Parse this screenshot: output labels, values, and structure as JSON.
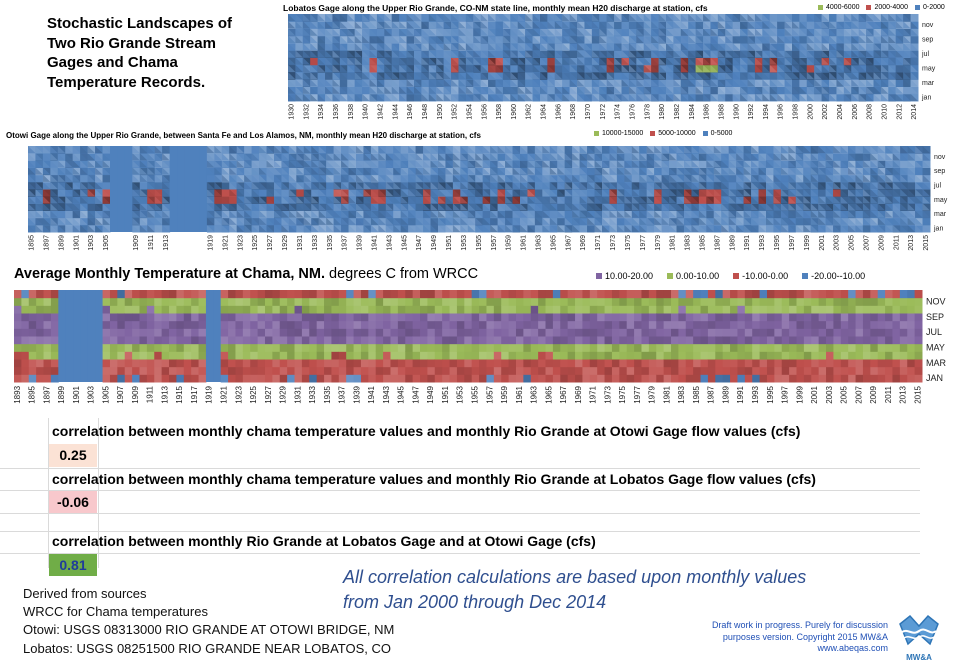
{
  "header": {
    "title_lines": [
      "Stochastic Landscapes of",
      "Two Rio Grande Stream",
      "Gages and Chama",
      "Temperature Records."
    ]
  },
  "colors": {
    "high": "#9bbb59",
    "mid": "#c0504d",
    "low": "#4f81bd",
    "temp_purple": "#8064a2",
    "temp_green": "#9bbb59",
    "temp_red": "#c0504d",
    "temp_blue": "#4f81bd",
    "value_otowi_bg": "#fbe2d5",
    "value_lobatos_bg": "#f8c8cc",
    "value_gages_bg": "#70ad47",
    "note": "#2f4f8f",
    "draft": "#1f4fb5"
  },
  "chart_data": [
    {
      "type": "heatmap",
      "title": "Lobatos Gage along the Upper Rio Grande, CO-NM state line, monthly mean H20 discharge at  station, cfs",
      "legend": [
        "4000-6000",
        "2000-4000",
        "0-2000"
      ],
      "legend_colors": [
        "#9bbb59",
        "#c0504d",
        "#4f81bd"
      ],
      "x_ticks": [
        "1930",
        "1932",
        "1934",
        "1936",
        "1938",
        "1940",
        "1942",
        "1944",
        "1946",
        "1948",
        "1950",
        "1952",
        "1954",
        "1956",
        "1958",
        "1960",
        "1962",
        "1964",
        "1966",
        "1968",
        "1970",
        "1972",
        "1974",
        "1976",
        "1978",
        "1980",
        "1982",
        "1984",
        "1986",
        "1988",
        "1990",
        "1992",
        "1994",
        "1996",
        "1998",
        "2000",
        "2002",
        "2004",
        "2006",
        "2008",
        "2010",
        "2012",
        "2014"
      ],
      "y_ticks": [
        "nov",
        "sep",
        "jul",
        "may",
        "mar",
        "jan"
      ],
      "peak_years": [
        "1941",
        "1952",
        "1957",
        "1958",
        "1965",
        "1973",
        "1979",
        "1983",
        "1985",
        "1986",
        "1987",
        "1993",
        "1995"
      ],
      "high_years": [
        "1985",
        "1986",
        "1987"
      ]
    },
    {
      "type": "heatmap",
      "title": "Otowi Gage along the Upper Rio Grande, between Santa Fe and Los Alamos, NM, monthly mean H20 discharge at  station, cfs",
      "legend": [
        "10000-15000",
        "5000-10000",
        "0-5000"
      ],
      "legend_colors": [
        "#9bbb59",
        "#c0504d",
        "#4f81bd"
      ],
      "x_ticks": [
        "1895",
        "1897",
        "1899",
        "1901",
        "1903",
        "1905",
        "1909",
        "1911",
        "1913",
        "1919",
        "1921",
        "1923",
        "1925",
        "1927",
        "1929",
        "1931",
        "1933",
        "1935",
        "1937",
        "1939",
        "1941",
        "1943",
        "1945",
        "1947",
        "1949",
        "1951",
        "1953",
        "1955",
        "1957",
        "1959",
        "1961",
        "1963",
        "1965",
        "1967",
        "1969",
        "1971",
        "1973",
        "1975",
        "1977",
        "1979",
        "1981",
        "1983",
        "1985",
        "1987",
        "1989",
        "1991",
        "1993",
        "1995",
        "1997",
        "1999",
        "2001",
        "2003",
        "2005",
        "2007",
        "2009",
        "2011",
        "2013",
        "2015"
      ],
      "y_ticks": [
        "nov",
        "sep",
        "jul",
        "may",
        "mar",
        "jan"
      ],
      "gap_years": [
        "1906-1908",
        "1914-1918"
      ],
      "peak_years": [
        "1897",
        "1905",
        "1907",
        "1911",
        "1912",
        "1920",
        "1921",
        "1922",
        "1937",
        "1941",
        "1942",
        "1948",
        "1952",
        "1958",
        "1973",
        "1979",
        "1983",
        "1985",
        "1986",
        "1987",
        "1993",
        "1995"
      ]
    },
    {
      "type": "heatmap",
      "title_bold": "Average Monthly Temperature at Chama, NM.",
      "title_rest": " degrees C from WRCC",
      "legend": [
        "10.00-20.00",
        "0.00-10.00",
        "-10.00-0.00",
        "-20.00--10.00"
      ],
      "legend_colors": [
        "#8064a2",
        "#9bbb59",
        "#c0504d",
        "#4f81bd"
      ],
      "x_ticks": [
        "1893",
        "1895",
        "1897",
        "1899",
        "1901",
        "1903",
        "1905",
        "1907",
        "1909",
        "1911",
        "1913",
        "1915",
        "1917",
        "1919",
        "1921",
        "1923",
        "1925",
        "1927",
        "1929",
        "1931",
        "1933",
        "1935",
        "1937",
        "1939",
        "1941",
        "1943",
        "1945",
        "1947",
        "1949",
        "1951",
        "1953",
        "1955",
        "1957",
        "1959",
        "1961",
        "1963",
        "1965",
        "1967",
        "1969",
        "1971",
        "1973",
        "1975",
        "1977",
        "1979",
        "1981",
        "1983",
        "1985",
        "1987",
        "1989",
        "1991",
        "1993",
        "1995",
        "1997",
        "1999",
        "2001",
        "2003",
        "2005",
        "2007",
        "2009",
        "2011",
        "2013",
        "2015"
      ],
      "y_ticks": [
        "NOV",
        "SEP",
        "JUL",
        "MAY",
        "MAR",
        "JAN"
      ],
      "missing_years": [
        "1899-1904",
        "1919-1920"
      ]
    }
  ],
  "correlations": [
    {
      "label": "correlation between monthly chama temperature values and monthly Rio Grande at Otowi Gage flow values (cfs)",
      "value": "0.25"
    },
    {
      "label": "correlation between monthly chama temperature values and monthly Rio Grande at Lobatos Gage flow values (cfs)",
      "value": "-0.06"
    },
    {
      "label": "correlation between monthly Rio Grande at Lobatos Gage and at Otowi Gage (cfs)",
      "value": "0.81"
    }
  ],
  "note": {
    "line1": "All correlation calculations are based upon monthly values",
    "line2": "from Jan 2000 through  Dec 2014"
  },
  "sources": {
    "line1": "Derived from sources",
    "line2": "WRCC for Chama temperatures",
    "line3": "Otowi: USGS 08313000 RIO GRANDE AT OTOWI BRIDGE, NM",
    "line4": "Lobatos: USGS 08251500 RIO GRANDE NEAR LOBATOS, CO"
  },
  "footer": {
    "draft_line1": "Draft work in progress.  Purely for discussion",
    "draft_line2": "purposes version.  Copyright 2015 MW&A",
    "draft_line3": "www.abeqas.com",
    "logo_text": "MW&A"
  }
}
